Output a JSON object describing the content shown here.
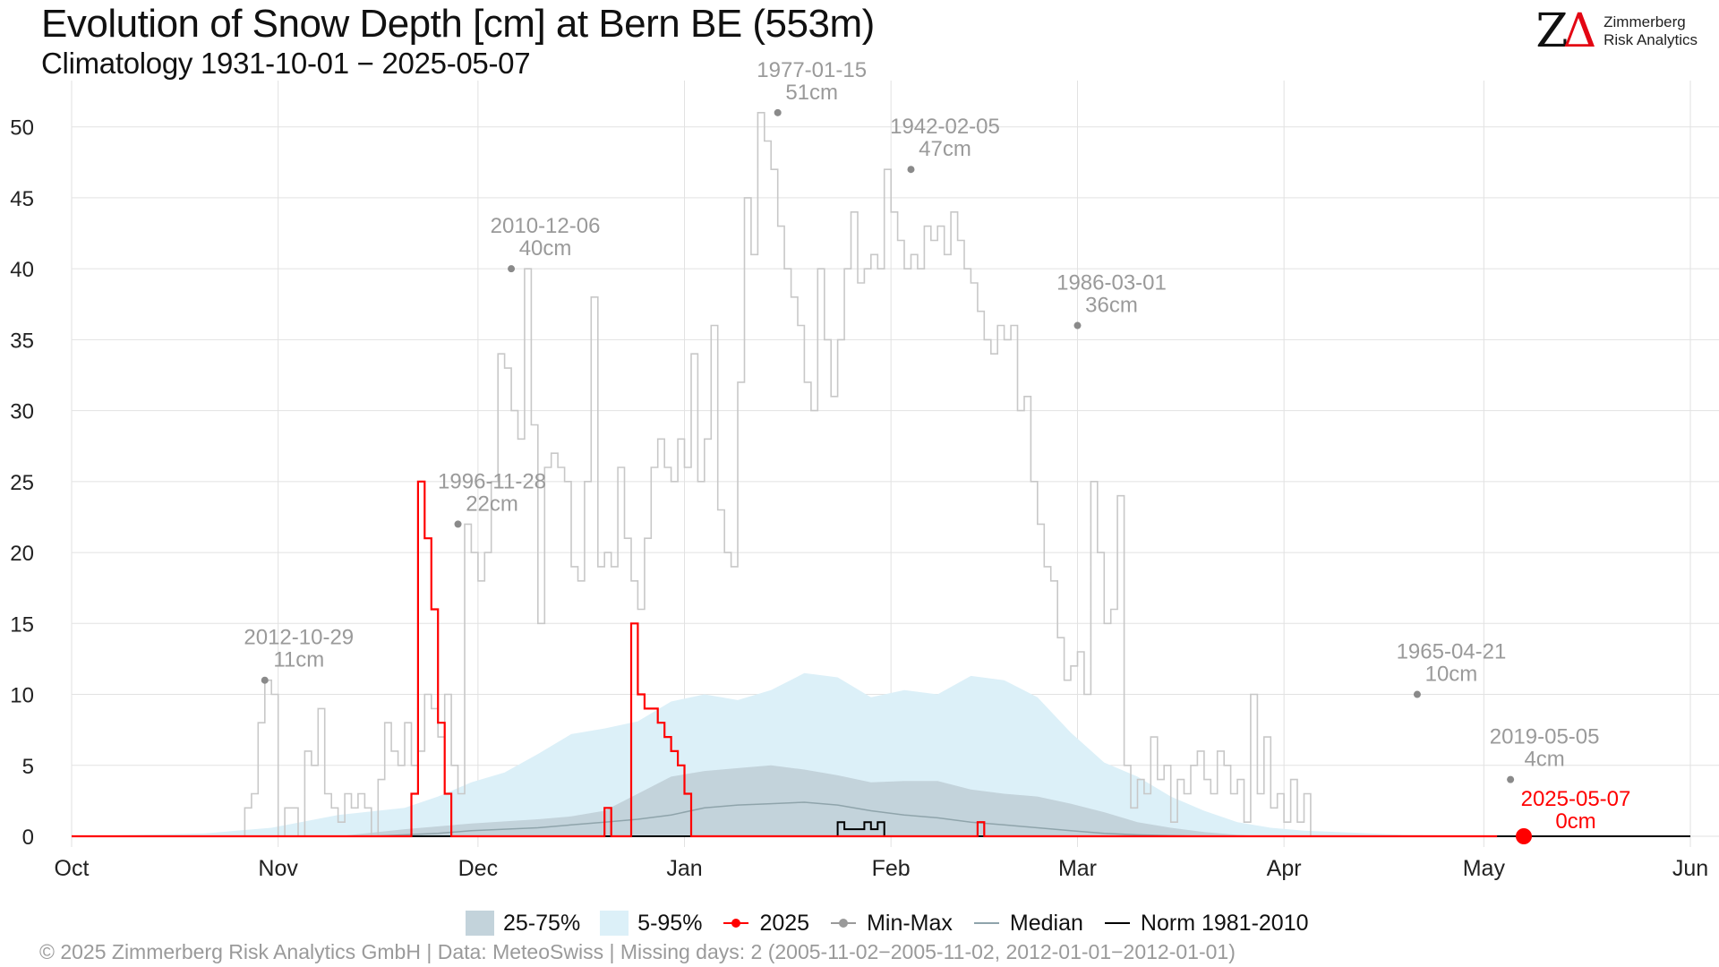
{
  "header": {
    "title": "Evolution of Snow Depth [cm] at Bern  BE (553m)",
    "subtitle": "Climatology 1931-10-01 − 2025-05-07",
    "logo_line1": "Zimmerberg",
    "logo_line2": "Risk Analytics",
    "logo_mark": "ZΔ"
  },
  "footer": "©  2025 Zimmerberg Risk Analytics GmbH | Data: MeteoSwiss | Missing days: 2 (2005-11-02−2005-11-02, 2012-01-01−2012-01-01)",
  "legend": [
    {
      "label": "25-75%",
      "kind": "box-iqr"
    },
    {
      "label": "5-95%",
      "kind": "box-p"
    },
    {
      "label": "2025",
      "kind": "line-dot",
      "color": "#ff0000"
    },
    {
      "label": "Min-Max",
      "kind": "line-dot",
      "color": "#9a9a9a"
    },
    {
      "label": "Median",
      "kind": "line",
      "color": "#8fa4ab"
    },
    {
      "label": "Norm 1981-2010",
      "kind": "line",
      "color": "#000000"
    }
  ],
  "colors": {
    "current": "#ff0000",
    "minmax": "#c8c8c8",
    "annotation": "#9a9a9a",
    "iqr": "#c3d3db",
    "p5_95": "#dcf0f8",
    "median": "#8fa4ab",
    "norm": "#000000",
    "grid": "#e2e2e2"
  },
  "chart_data": {
    "type": "line",
    "title": "Evolution of Snow Depth [cm] at Bern  BE (553m)",
    "subtitle": "Climatology 1931-10-01 − 2025-05-07",
    "x_unit": "day of season (0 = Oct 1)",
    "x_range": [
      0,
      243
    ],
    "ylim": [
      0,
      52
    ],
    "y_ticks": [
      0,
      5,
      10,
      15,
      20,
      25,
      30,
      35,
      40,
      45,
      50
    ],
    "x_ticks": [
      {
        "label": "Oct",
        "day": 0
      },
      {
        "label": "Nov",
        "day": 31
      },
      {
        "label": "Dec",
        "day": 61
      },
      {
        "label": "Jan",
        "day": 92
      },
      {
        "label": "Feb",
        "day": 123
      },
      {
        "label": "Mar",
        "day": 151
      },
      {
        "label": "Apr",
        "day": 182
      },
      {
        "label": "May",
        "day": 212
      },
      {
        "label": "Jun",
        "day": 243
      }
    ],
    "grid": true,
    "legend_position": "bottom",
    "series": [
      {
        "name": "Min-Max",
        "style": "step",
        "points": [
          [
            0,
            0
          ],
          [
            25,
            0
          ],
          [
            26,
            2
          ],
          [
            27,
            3
          ],
          [
            28,
            8
          ],
          [
            29,
            11
          ],
          [
            30,
            10
          ],
          [
            31,
            0
          ],
          [
            32,
            2
          ],
          [
            34,
            0
          ],
          [
            35,
            6
          ],
          [
            36,
            5
          ],
          [
            37,
            9
          ],
          [
            38,
            3
          ],
          [
            39,
            2
          ],
          [
            40,
            1
          ],
          [
            41,
            3
          ],
          [
            42,
            2
          ],
          [
            43,
            3
          ],
          [
            44,
            2
          ],
          [
            45,
            0
          ],
          [
            46,
            4
          ],
          [
            47,
            8
          ],
          [
            48,
            6
          ],
          [
            49,
            5
          ],
          [
            50,
            8
          ],
          [
            51,
            5
          ],
          [
            52,
            6
          ],
          [
            53,
            10
          ],
          [
            54,
            9
          ],
          [
            55,
            7
          ],
          [
            56,
            10
          ],
          [
            57,
            5
          ],
          [
            58,
            3
          ],
          [
            59,
            22
          ],
          [
            60,
            20
          ],
          [
            61,
            18
          ],
          [
            62,
            20
          ],
          [
            63,
            25
          ],
          [
            64,
            34
          ],
          [
            65,
            33
          ],
          [
            66,
            30
          ],
          [
            67,
            28
          ],
          [
            68,
            40
          ],
          [
            69,
            29
          ],
          [
            70,
            15
          ],
          [
            71,
            26
          ],
          [
            72,
            27
          ],
          [
            73,
            26
          ],
          [
            74,
            25
          ],
          [
            75,
            19
          ],
          [
            76,
            18
          ],
          [
            77,
            25
          ],
          [
            78,
            38
          ],
          [
            79,
            19
          ],
          [
            80,
            20
          ],
          [
            81,
            19
          ],
          [
            82,
            26
          ],
          [
            83,
            21
          ],
          [
            84,
            18
          ],
          [
            85,
            16
          ],
          [
            86,
            21
          ],
          [
            87,
            26
          ],
          [
            88,
            28
          ],
          [
            89,
            26
          ],
          [
            90,
            25
          ],
          [
            91,
            28
          ],
          [
            92,
            26
          ],
          [
            93,
            34
          ],
          [
            94,
            25
          ],
          [
            95,
            28
          ],
          [
            96,
            36
          ],
          [
            97,
            23
          ],
          [
            98,
            20
          ],
          [
            99,
            19
          ],
          [
            100,
            32
          ],
          [
            101,
            45
          ],
          [
            102,
            41
          ],
          [
            103,
            51
          ],
          [
            104,
            49
          ],
          [
            105,
            47
          ],
          [
            106,
            43
          ],
          [
            107,
            40
          ],
          [
            108,
            38
          ],
          [
            109,
            36
          ],
          [
            110,
            32
          ],
          [
            111,
            30
          ],
          [
            112,
            40
          ],
          [
            113,
            35
          ],
          [
            114,
            31
          ],
          [
            115,
            35
          ],
          [
            116,
            40
          ],
          [
            117,
            44
          ],
          [
            118,
            39
          ],
          [
            119,
            40
          ],
          [
            120,
            41
          ],
          [
            121,
            40
          ],
          [
            122,
            47
          ],
          [
            123,
            44
          ],
          [
            124,
            42
          ],
          [
            125,
            40
          ],
          [
            126,
            41
          ],
          [
            127,
            40
          ],
          [
            128,
            43
          ],
          [
            129,
            42
          ],
          [
            130,
            43
          ],
          [
            131,
            41
          ],
          [
            132,
            44
          ],
          [
            133,
            42
          ],
          [
            134,
            40
          ],
          [
            135,
            39
          ],
          [
            136,
            37
          ],
          [
            137,
            35
          ],
          [
            138,
            34
          ],
          [
            139,
            36
          ],
          [
            140,
            35
          ],
          [
            141,
            36
          ],
          [
            142,
            30
          ],
          [
            143,
            31
          ],
          [
            144,
            25
          ],
          [
            145,
            22
          ],
          [
            146,
            19
          ],
          [
            147,
            18
          ],
          [
            148,
            14
          ],
          [
            149,
            11
          ],
          [
            150,
            12
          ],
          [
            151,
            13
          ],
          [
            152,
            10
          ],
          [
            153,
            25
          ],
          [
            154,
            20
          ],
          [
            155,
            15
          ],
          [
            156,
            16
          ],
          [
            157,
            24
          ],
          [
            158,
            5
          ],
          [
            159,
            2
          ],
          [
            160,
            4
          ],
          [
            161,
            3
          ],
          [
            162,
            7
          ],
          [
            163,
            4
          ],
          [
            164,
            5
          ],
          [
            165,
            1
          ],
          [
            166,
            4
          ],
          [
            167,
            3
          ],
          [
            168,
            5
          ],
          [
            169,
            6
          ],
          [
            170,
            4
          ],
          [
            171,
            3
          ],
          [
            172,
            6
          ],
          [
            173,
            5
          ],
          [
            174,
            3
          ],
          [
            175,
            4
          ],
          [
            176,
            1
          ],
          [
            177,
            10
          ],
          [
            178,
            3
          ],
          [
            179,
            7
          ],
          [
            180,
            2
          ],
          [
            181,
            3
          ],
          [
            182,
            1
          ],
          [
            183,
            4
          ],
          [
            184,
            1
          ],
          [
            185,
            3
          ],
          [
            186,
            0
          ]
        ]
      },
      {
        "name": "2025",
        "style": "step",
        "points": [
          [
            0,
            0
          ],
          [
            50,
            0
          ],
          [
            51,
            3
          ],
          [
            52,
            25
          ],
          [
            53,
            21
          ],
          [
            54,
            16
          ],
          [
            55,
            8
          ],
          [
            56,
            3
          ],
          [
            57,
            0
          ],
          [
            79,
            0
          ],
          [
            80,
            2
          ],
          [
            81,
            0
          ],
          [
            83,
            0
          ],
          [
            84,
            15
          ],
          [
            85,
            10
          ],
          [
            86,
            9
          ],
          [
            88,
            8
          ],
          [
            89,
            7
          ],
          [
            90,
            6
          ],
          [
            91,
            5
          ],
          [
            92,
            3
          ],
          [
            93,
            0
          ],
          [
            135,
            0
          ],
          [
            136,
            1
          ],
          [
            137,
            0
          ],
          [
            214,
            0
          ]
        ]
      },
      {
        "name": "Norm 1981-2010",
        "style": "step",
        "points": [
          [
            0,
            0
          ],
          [
            114,
            0
          ],
          [
            115,
            1
          ],
          [
            116,
            0.5
          ],
          [
            118,
            0.5
          ],
          [
            119,
            1
          ],
          [
            120,
            0.5
          ],
          [
            121,
            1
          ],
          [
            122,
            0
          ],
          [
            243,
            0
          ]
        ]
      }
    ],
    "bands": [
      {
        "name": "5-95%",
        "x": [
          0,
          20,
          30,
          40,
          50,
          55,
          60,
          65,
          70,
          75,
          80,
          85,
          90,
          95,
          100,
          105,
          110,
          115,
          120,
          125,
          130,
          135,
          140,
          145,
          150,
          155,
          160,
          165,
          170,
          175,
          180,
          185,
          190,
          200,
          210,
          220,
          243
        ],
        "upper": [
          0,
          0.2,
          0.6,
          1.5,
          2.0,
          2.8,
          3.8,
          4.5,
          5.8,
          7.2,
          7.6,
          8.1,
          9.5,
          10.0,
          9.6,
          10.3,
          11.5,
          11.2,
          9.8,
          10.3,
          10.0,
          11.3,
          11.0,
          9.8,
          7.3,
          5.2,
          4.2,
          2.8,
          1.8,
          1.0,
          0.6,
          0.4,
          0.3,
          0.1,
          0.05,
          0.0,
          0.0
        ],
        "lower": [
          0,
          0,
          0,
          0,
          0,
          0,
          0,
          0,
          0,
          0,
          0,
          0,
          0,
          0,
          0,
          0,
          0,
          0,
          0,
          0,
          0,
          0,
          0,
          0,
          0,
          0,
          0,
          0,
          0,
          0,
          0,
          0,
          0,
          0,
          0,
          0,
          0
        ]
      },
      {
        "name": "25-75%",
        "x": [
          0,
          40,
          50,
          60,
          70,
          75,
          80,
          85,
          90,
          95,
          100,
          105,
          110,
          115,
          120,
          125,
          130,
          135,
          140,
          145,
          150,
          155,
          160,
          165,
          170,
          175,
          180,
          190,
          243
        ],
        "upper": [
          0,
          0,
          0.5,
          0.9,
          1.2,
          1.4,
          1.8,
          3.0,
          4.2,
          4.6,
          4.8,
          5.0,
          4.7,
          4.3,
          3.8,
          3.9,
          3.9,
          3.3,
          3.0,
          2.8,
          2.3,
          1.7,
          1.0,
          0.6,
          0.3,
          0.1,
          0.0,
          0.0,
          0.0
        ],
        "lower": [
          0,
          0,
          0,
          0,
          0,
          0,
          0,
          0,
          0,
          0,
          0,
          0,
          0,
          0,
          0,
          0,
          0,
          0,
          0,
          0,
          0,
          0,
          0,
          0,
          0,
          0,
          0,
          0,
          0
        ]
      }
    ],
    "median": {
      "name": "Median",
      "x": [
        0,
        45,
        50,
        55,
        60,
        65,
        70,
        75,
        80,
        85,
        90,
        95,
        100,
        105,
        110,
        115,
        120,
        125,
        130,
        135,
        140,
        145,
        150,
        155,
        160,
        165,
        170,
        175,
        243
      ],
      "y": [
        0,
        0,
        0.1,
        0.2,
        0.4,
        0.5,
        0.6,
        0.8,
        1.0,
        1.2,
        1.5,
        2.0,
        2.2,
        2.3,
        2.4,
        2.2,
        1.8,
        1.5,
        1.3,
        1.0,
        0.8,
        0.6,
        0.4,
        0.2,
        0.1,
        0.05,
        0,
        0,
        0
      ]
    },
    "annotations": [
      {
        "date": "2012-10-29",
        "value_label": "11cm",
        "x": 29,
        "y": 11
      },
      {
        "date": "1996-11-28",
        "value_label": "22cm",
        "x": 58,
        "y": 22
      },
      {
        "date": "2010-12-06",
        "value_label": "40cm",
        "x": 66,
        "y": 40
      },
      {
        "date": "1977-01-15",
        "value_label": "51cm",
        "x": 106,
        "y": 51
      },
      {
        "date": "1942-02-05",
        "value_label": "47cm",
        "x": 126,
        "y": 47
      },
      {
        "date": "1986-03-01",
        "value_label": "36cm",
        "x": 151,
        "y": 36
      },
      {
        "date": "1965-04-21",
        "value_label": "10cm",
        "x": 202,
        "y": 10
      },
      {
        "date": "2019-05-05",
        "value_label": "4cm",
        "x": 216,
        "y": 4
      }
    ],
    "current": {
      "date": "2025-05-07",
      "value_label": "0cm",
      "x": 218,
      "y": 0
    }
  }
}
